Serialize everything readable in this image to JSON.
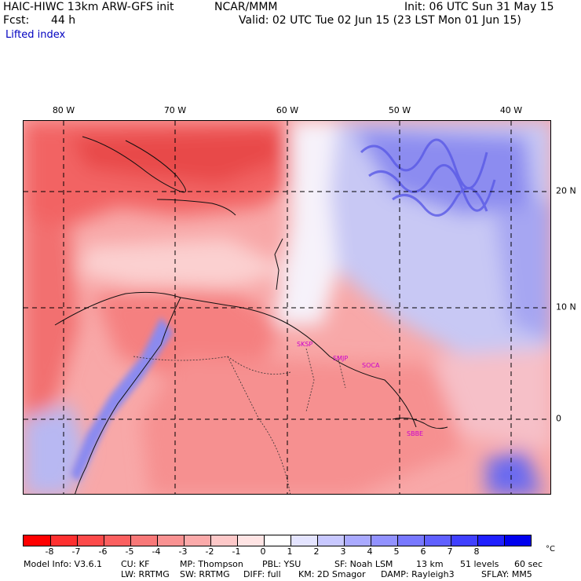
{
  "header": {
    "model_title": "HAIC-HIWC 13km ARW-GFS init",
    "org": "NCAR/MMM",
    "init_label": "Init: 06 UTC Sun 31 May 15",
    "fcst_label": "Fcst:",
    "fcst_value": "44 h",
    "valid_label": "Valid: 02 UTC Tue 02 Jun 15 (23 LST Mon 01 Jun 15)",
    "field_name": "Lifted index"
  },
  "map": {
    "lon_labels": [
      "80 W",
      "70 W",
      "60 W",
      "50 W",
      "40 W"
    ],
    "lat_labels": [
      "20 N",
      "10 N",
      "0"
    ],
    "stations": [
      "SKSP",
      "SMJP",
      "SOCA",
      "SBBE"
    ]
  },
  "colorbar": {
    "colors": [
      "#ff0000",
      "#fe3030",
      "#fc4a4a",
      "#fb6060",
      "#f87878",
      "#f99292",
      "#fbaaaa",
      "#fdc8c8",
      "#ffe4e4",
      "#ffffff",
      "#e4e4ff",
      "#c8c8ff",
      "#aaaaff",
      "#9292ff",
      "#7878ff",
      "#6060ff",
      "#4040ff",
      "#2020ff",
      "#0000ee"
    ],
    "labels": [
      "-8",
      "-7",
      "-6",
      "-5",
      "-4",
      "-3",
      "-2",
      "-1",
      "0",
      "1",
      "2",
      "3",
      "4",
      "5",
      "6",
      "7",
      "8"
    ],
    "unit": "°C"
  },
  "footer": {
    "line1": [
      "Model Info: V3.6.1",
      "CU: KF",
      "MP: Thompson",
      "PBL: YSU",
      "SF: Noah LSM",
      "13 km",
      "51 levels",
      "60 sec"
    ],
    "line2": [
      "LW: RRTMG",
      "SW: RRTMG",
      "DIFF: full",
      "KM: 2D Smagor",
      "DAMP: Rayleigh3",
      "SFLAY: MM5"
    ]
  }
}
